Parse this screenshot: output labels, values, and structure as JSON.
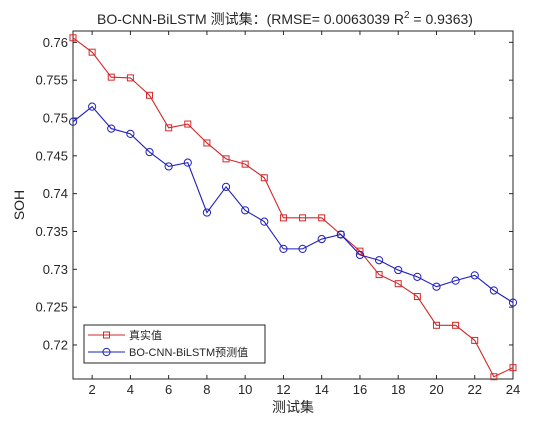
{
  "chart_data": {
    "type": "line",
    "title": "BO-CNN-BiLSTM 测试集：(RMSE= 0.0063039 R",
    "title_superscript": "2",
    "title_suffix": " = 0.9363)",
    "xlabel": "测试集",
    "ylabel": "SOH",
    "xlim": [
      1,
      24
    ],
    "ylim": [
      0.7155,
      0.7615
    ],
    "xticks": [
      2,
      4,
      6,
      8,
      10,
      12,
      14,
      16,
      18,
      20,
      22,
      24
    ],
    "yticks": [
      0.72,
      0.725,
      0.73,
      0.735,
      0.74,
      0.745,
      0.75,
      0.755,
      0.76
    ],
    "grid": false,
    "legend_position": "bottom-left",
    "x": [
      1,
      2,
      3,
      4,
      5,
      6,
      7,
      8,
      9,
      10,
      11,
      12,
      13,
      14,
      15,
      16,
      17,
      18,
      19,
      20,
      21,
      22,
      23,
      24
    ],
    "series": [
      {
        "name": "真实值",
        "color": "#d62728",
        "marker": "square",
        "values": [
          0.7606,
          0.7587,
          0.7554,
          0.7553,
          0.753,
          0.7487,
          0.7492,
          0.7467,
          0.7446,
          0.7439,
          0.7421,
          0.7368,
          0.7368,
          0.7368,
          0.7346,
          0.7324,
          0.7293,
          0.7281,
          0.7264,
          0.7226,
          0.7226,
          0.7206,
          0.7158,
          0.717
        ]
      },
      {
        "name": "BO-CNN-BiLSTM预测值",
        "color": "#1f1fbf",
        "marker": "circle",
        "values": [
          0.7495,
          0.7515,
          0.7486,
          0.7479,
          0.7455,
          0.7436,
          0.7441,
          0.7375,
          0.7409,
          0.7378,
          0.7363,
          0.7327,
          0.7327,
          0.734,
          0.7346,
          0.7319,
          0.7312,
          0.7299,
          0.729,
          0.7277,
          0.7285,
          0.7292,
          0.7272,
          0.7256
        ]
      }
    ]
  }
}
